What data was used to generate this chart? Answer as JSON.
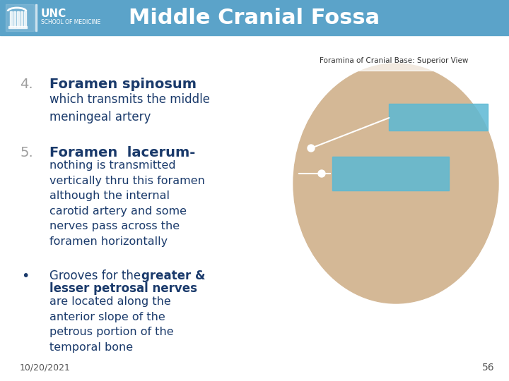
{
  "title": "Middle Cranial Fossa",
  "header_bg": "#5ba3c9",
  "slide_bg": "#f0f0f0",
  "body_bg": "#ffffff",
  "header_text_color": "#ffffff",
  "number_color": "#9e9e9e",
  "bold_text_color": "#1a3a6b",
  "normal_text_color": "#1a3a6b",
  "item4_number": "4.",
  "item4_bold": "Foramen spinosum",
  "item4_normal": "which transmits the middle\nmeningeal artery",
  "item5_number": "5.",
  "item5_bold": "Foramen  lacerum-",
  "item5_normal": "nothing is transmitted\nvertically thru this foramen\nalthough the internal\ncarotid artery and some\nnerves pass across the\nforamen horizontally",
  "bullet_text_bold": "greater &\nlesser petrosal nerves",
  "bullet_pre": "Grooves for the ",
  "bullet_normal": "are located along the\nanterior slope of the\npetrous portion of the\ntemporal bone",
  "date_text": "10/20/2021",
  "page_num": "56",
  "highlight_color1": "#5bb8d4",
  "highlight_color2": "#5bb8d4",
  "image_label": "Foramina of Cranial Base: Superior View",
  "unc_text": "UNC\nSCHOOL OF MEDICINE"
}
